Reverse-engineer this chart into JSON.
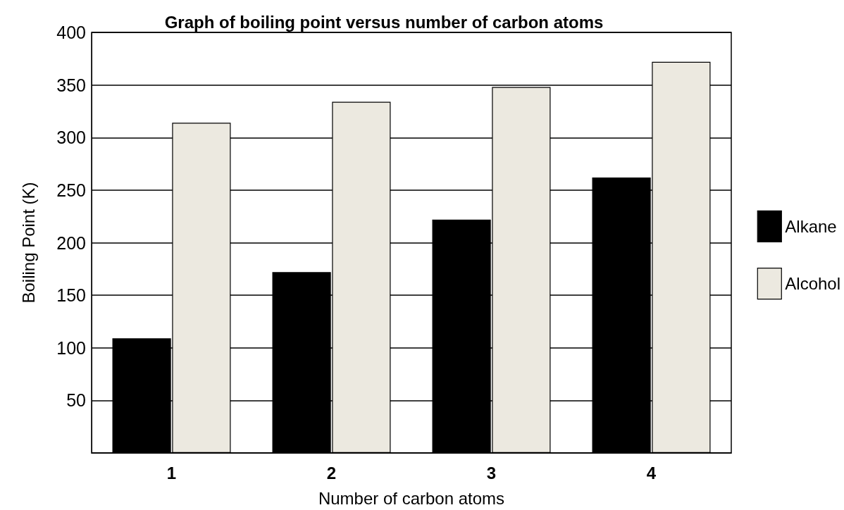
{
  "chart_data": {
    "type": "bar",
    "title": "Graph of boiling point versus number of carbon atoms",
    "xlabel": "Number of carbon atoms",
    "ylabel": "Boiling Point (K)",
    "categories": [
      "1",
      "2",
      "3",
      "4"
    ],
    "series": [
      {
        "name": "Alkane",
        "color": "#000000",
        "values": [
          109,
          172,
          222,
          262
        ]
      },
      {
        "name": "Alcohol",
        "color": "#ece9e0",
        "values": [
          314,
          334,
          348,
          372
        ]
      }
    ],
    "ylim": [
      0,
      400
    ],
    "yticks": [
      {
        "value": 0,
        "label": null
      },
      50,
      100,
      150,
      200,
      250,
      300,
      350,
      400
    ],
    "grid": "y",
    "legend": "right"
  }
}
